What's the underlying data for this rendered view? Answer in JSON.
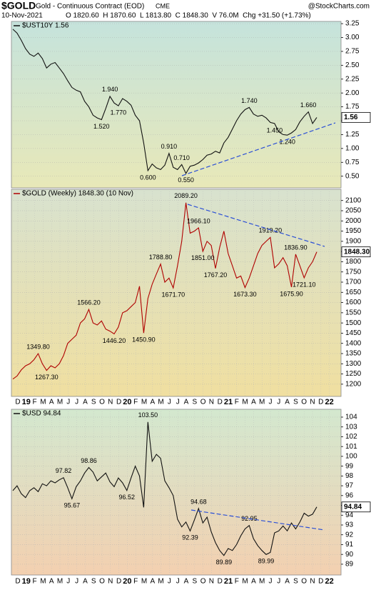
{
  "header": {
    "symbol": "$GOLD",
    "name": "Gold - Continuous Contract (EOD)",
    "exchange": "CME",
    "source": "@StockCharts.com",
    "date": "10-Nov-2021",
    "quote": "O 1820.60  H 1870.60  L 1813.80  C 1848.30  V 76.0M  Chg +31.50 (+1.73%)"
  },
  "chart_data": [
    {
      "type": "line",
      "title": "$UST10Y 1.56",
      "color": "#111111",
      "grid": true,
      "values": [
        3.15,
        3.08,
        2.95,
        2.8,
        2.7,
        2.66,
        2.72,
        2.62,
        2.45,
        2.52,
        2.55,
        2.45,
        2.35,
        2.22,
        2.1,
        2.05,
        2.02,
        1.85,
        1.75,
        1.6,
        1.55,
        1.52,
        1.72,
        1.94,
        1.82,
        1.77,
        1.9,
        1.85,
        1.78,
        1.6,
        1.5,
        1.1,
        0.6,
        0.72,
        0.65,
        0.62,
        0.7,
        0.91,
        0.66,
        0.62,
        0.71,
        0.55,
        0.68,
        0.7,
        0.74,
        0.8,
        0.88,
        0.9,
        0.95,
        0.92,
        1.1,
        1.2,
        1.35,
        1.5,
        1.62,
        1.7,
        1.74,
        1.62,
        1.58,
        1.6,
        1.55,
        1.47,
        1.45,
        1.3,
        1.25,
        1.24,
        1.28,
        1.34,
        1.48,
        1.58,
        1.66,
        1.45,
        1.56
      ],
      "ylim": [
        0.29,
        3.29
      ],
      "yticks": [
        {
          "value": 0.5,
          "label": "0.50"
        },
        {
          "value": 0.75,
          "label": "0.75"
        },
        {
          "value": 1,
          "label": "1.00"
        },
        {
          "value": 1.25,
          "label": "1.25"
        },
        {
          "value": 1.5,
          "label": "1.50"
        },
        {
          "value": 1.75,
          "label": "1.75"
        },
        {
          "value": 2,
          "label": "2.00"
        },
        {
          "value": 2.25,
          "label": "2.25"
        },
        {
          "value": 2.5,
          "label": "2.50"
        },
        {
          "value": 2.75,
          "label": "2.75"
        },
        {
          "value": 3,
          "label": "3.00"
        },
        {
          "value": 3.25,
          "label": "3.25"
        }
      ],
      "annotations": [
        {
          "value": 1.52,
          "label": "1.520"
        },
        {
          "value": 1.94,
          "label": "1.940"
        },
        {
          "value": 1.77,
          "label": "1.770"
        },
        {
          "value": 0.6,
          "label": "0.600"
        },
        {
          "value": 0.91,
          "label": "0.910"
        },
        {
          "value": 0.71,
          "label": "0.710"
        },
        {
          "value": 0.55,
          "label": "0.550"
        },
        {
          "value": 1.74,
          "label": "1.740"
        },
        {
          "value": 1.24,
          "label": "1.240"
        },
        {
          "value": 1.66,
          "label": "1.660"
        },
        {
          "value": 1.45,
          "label": "1.450"
        }
      ],
      "last_label": {
        "value": 1.56,
        "label": "1.56"
      }
    },
    {
      "type": "line",
      "title": "$GOLD (Weekly) 1848.30 (10 Nov)",
      "color": "#b00000",
      "grid": true,
      "values": [
        1225,
        1240,
        1270,
        1290,
        1300,
        1320,
        1349.8,
        1300,
        1267.3,
        1290,
        1280,
        1300,
        1340,
        1400,
        1420,
        1440,
        1500,
        1520,
        1566.2,
        1500,
        1490,
        1510,
        1470,
        1460,
        1446.2,
        1480,
        1550,
        1560,
        1580,
        1600,
        1680,
        1450.9,
        1620,
        1690,
        1740,
        1788.8,
        1700,
        1720,
        1671.7,
        1780,
        1900,
        2089.2,
        1940,
        1950,
        1966.1,
        1851.0,
        1900,
        1880,
        1767.2,
        1870,
        1950,
        1840,
        1780,
        1720,
        1730,
        1673.3,
        1720,
        1780,
        1840,
        1880,
        1900,
        1919.2,
        1770,
        1790,
        1820,
        1780,
        1675.9,
        1836.9,
        1780,
        1721.1,
        1770,
        1800,
        1848.3
      ],
      "ylim": [
        1140,
        2155
      ],
      "yticks": [
        1200,
        1250,
        1300,
        1350,
        1400,
        1450,
        1500,
        1550,
        1600,
        1650,
        1700,
        1750,
        1800,
        1850,
        1900,
        1950,
        2000,
        2050,
        2100
      ],
      "annotations": [
        {
          "value": 1349.8,
          "label": "1349.80"
        },
        {
          "value": 1267.3,
          "label": "1267.30"
        },
        {
          "value": 1566.2,
          "label": "1566.20"
        },
        {
          "value": 1446.2,
          "label": "1446.20"
        },
        {
          "value": 1450.9,
          "label": "1450.90"
        },
        {
          "value": 1788.8,
          "label": "1788.80"
        },
        {
          "value": 1671.7,
          "label": "1671.70"
        },
        {
          "value": 2089.2,
          "label": "2089.20"
        },
        {
          "value": 1966.1,
          "label": "1966.10"
        },
        {
          "value": 1851.0,
          "label": "1851.00"
        },
        {
          "value": 1767.2,
          "label": "1767.20"
        },
        {
          "value": 1673.3,
          "label": "1673.30"
        },
        {
          "value": 1919.2,
          "label": "1919.20"
        },
        {
          "value": 1675.9,
          "label": "1675.90"
        },
        {
          "value": 1836.9,
          "label": "1836.90"
        },
        {
          "value": 1721.1,
          "label": "1721.10"
        }
      ],
      "last_label": {
        "value": 1848.3,
        "label": "1848.30"
      },
      "x_labels": [
        "D",
        "19",
        "F",
        "M",
        "A",
        "M",
        "J",
        "J",
        "A",
        "S",
        "O",
        "N",
        "D",
        "20",
        "F",
        "M",
        "A",
        "M",
        "J",
        "J",
        "A",
        "S",
        "O",
        "N",
        "D",
        "21",
        "F",
        "M",
        "A",
        "M",
        "J",
        "J",
        "A",
        "S",
        "O",
        "N",
        "D",
        "22"
      ]
    },
    {
      "type": "line",
      "title": "$USD 94.84",
      "color": "#111111",
      "grid": true,
      "values": [
        96.5,
        97.0,
        96.2,
        95.8,
        96.5,
        96.8,
        96.4,
        97.2,
        97.0,
        97.5,
        97.3,
        97.6,
        97.82,
        96.8,
        95.67,
        96.9,
        97.5,
        98.3,
        98.86,
        98.4,
        97.5,
        97.9,
        98.3,
        97.4,
        96.9,
        97.8,
        97.3,
        96.52,
        97.8,
        99.0,
        98.0,
        94.8,
        103.5,
        99.5,
        100.2,
        99.8,
        97.5,
        96.8,
        96.0,
        93.6,
        92.8,
        93.3,
        92.39,
        93.5,
        94.68,
        93.2,
        93.8,
        92.3,
        91.2,
        90.4,
        89.89,
        90.6,
        90.4,
        91.0,
        91.9,
        92.6,
        92.95,
        91.6,
        90.9,
        90.4,
        89.99,
        90.2,
        92.2,
        92.4,
        92.9,
        92.4,
        93.2,
        92.6,
        93.3,
        94.2,
        93.9,
        94.1,
        94.84
      ],
      "ylim": [
        87.9,
        104.8
      ],
      "yticks": [
        89,
        90,
        91,
        92,
        93,
        94,
        95,
        96,
        97,
        98,
        99,
        100,
        101,
        102,
        103,
        104
      ],
      "annotations": [
        {
          "value": 97.82,
          "label": "97.82"
        },
        {
          "value": 95.67,
          "label": "95.67"
        },
        {
          "value": 98.86,
          "label": "98.86"
        },
        {
          "value": 96.52,
          "label": "96.52"
        },
        {
          "value": 103.5,
          "label": "103.50"
        },
        {
          "value": 92.39,
          "label": "92.39"
        },
        {
          "value": 94.68,
          "label": "94.68"
        },
        {
          "value": 89.89,
          "label": "89.89"
        },
        {
          "value": 92.95,
          "label": "92.95"
        },
        {
          "value": 89.99,
          "label": "89.99"
        }
      ],
      "last_label": {
        "value": 94.84,
        "label": "94.84"
      },
      "x_labels": [
        "D",
        "19",
        "F",
        "M",
        "A",
        "M",
        "J",
        "J",
        "A",
        "S",
        "O",
        "N",
        "D",
        "20",
        "F",
        "M",
        "A",
        "M",
        "J",
        "J",
        "A",
        "S",
        "O",
        "N",
        "D",
        "21",
        "F",
        "M",
        "A",
        "M",
        "J",
        "J",
        "A",
        "S",
        "O",
        "N",
        "D",
        "22"
      ]
    }
  ]
}
